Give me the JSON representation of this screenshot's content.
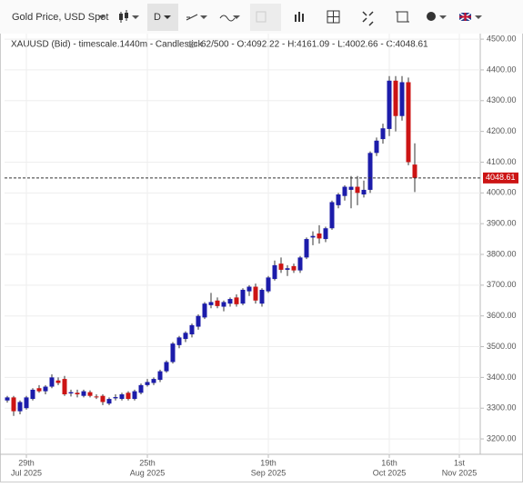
{
  "toolbar": {
    "symbol": "Gold Price, USD Spot",
    "interval": "D"
  },
  "chart_data": {
    "type": "candlestick",
    "title": "XAUUSD (Bid) - timescale.1440m - Candlestick",
    "subtitle": "62/500 - O:4092.22 - H:4161.09 - L:4002.66 - C:4048.61",
    "x": [
      "2025-07-24",
      "2025-07-25",
      "2025-07-28",
      "2025-07-29",
      "2025-07-30",
      "2025-07-31",
      "2025-08-01",
      "2025-08-04",
      "2025-08-05",
      "2025-08-06",
      "2025-08-07",
      "2025-08-08",
      "2025-08-11",
      "2025-08-12",
      "2025-08-13",
      "2025-08-14",
      "2025-08-15",
      "2025-08-18",
      "2025-08-19",
      "2025-08-20",
      "2025-08-21",
      "2025-08-22",
      "2025-08-25",
      "2025-08-26",
      "2025-08-27",
      "2025-08-28",
      "2025-08-29",
      "2025-09-01",
      "2025-09-02",
      "2025-09-03",
      "2025-09-04",
      "2025-09-05",
      "2025-09-08",
      "2025-09-09",
      "2025-09-10",
      "2025-09-11",
      "2025-09-12",
      "2025-09-15",
      "2025-09-16",
      "2025-09-17",
      "2025-09-18",
      "2025-09-19",
      "2025-09-22",
      "2025-09-23",
      "2025-09-24",
      "2025-09-25",
      "2025-09-26",
      "2025-09-29",
      "2025-09-30",
      "2025-10-01",
      "2025-10-02",
      "2025-10-03",
      "2025-10-06",
      "2025-10-07",
      "2025-10-08",
      "2025-10-09",
      "2025-10-10",
      "2025-10-13",
      "2025-10-14",
      "2025-10-15",
      "2025-10-16",
      "2025-10-17",
      "2025-10-20",
      "2025-10-21",
      "2025-10-22"
    ],
    "open": [
      3325,
      3335,
      3290,
      3300,
      3330,
      3365,
      3355,
      3370,
      3390,
      3395,
      3348,
      3350,
      3340,
      3352,
      3338,
      3340,
      3315,
      3332,
      3330,
      3350,
      3330,
      3350,
      3375,
      3382,
      3392,
      3420,
      3450,
      3505,
      3525,
      3540,
      3565,
      3595,
      3635,
      3650,
      3630,
      3640,
      3660,
      3640,
      3680,
      3695,
      3640,
      3680,
      3720,
      3770,
      3750,
      3762,
      3748,
      3790,
      3855,
      3868,
      3850,
      3885,
      3960,
      3990,
      4010,
      4020,
      3995,
      4010,
      4130,
      4175,
      4208,
      4365,
      4250,
      4360,
      4092.22
    ],
    "high": [
      3340,
      3340,
      3325,
      3340,
      3365,
      3375,
      3375,
      3410,
      3400,
      3405,
      3360,
      3360,
      3360,
      3358,
      3345,
      3345,
      3335,
      3345,
      3350,
      3355,
      3360,
      3380,
      3395,
      3400,
      3425,
      3455,
      3515,
      3535,
      3550,
      3575,
      3605,
      3645,
      3675,
      3660,
      3650,
      3660,
      3670,
      3690,
      3700,
      3705,
      3690,
      3730,
      3780,
      3790,
      3765,
      3770,
      3795,
      3855,
      3875,
      3895,
      3890,
      3975,
      4000,
      4025,
      4055,
      4055,
      4040,
      4135,
      4180,
      4225,
      4380,
      4380,
      4380,
      4375,
      4161.09
    ],
    "low": [
      3318,
      3275,
      3280,
      3295,
      3325,
      3350,
      3345,
      3365,
      3375,
      3340,
      3338,
      3335,
      3335,
      3335,
      3330,
      3310,
      3310,
      3325,
      3325,
      3325,
      3325,
      3345,
      3370,
      3375,
      3385,
      3415,
      3445,
      3495,
      3515,
      3530,
      3555,
      3590,
      3625,
      3625,
      3615,
      3630,
      3630,
      3635,
      3665,
      3640,
      3630,
      3675,
      3715,
      3740,
      3730,
      3740,
      3740,
      3785,
      3830,
      3835,
      3840,
      3880,
      3950,
      3975,
      3950,
      3960,
      3985,
      4000,
      4120,
      4160,
      4185,
      4200,
      4235,
      4090,
      4002.66
    ],
    "close": [
      3335,
      3290,
      3320,
      3335,
      3360,
      3355,
      3370,
      3400,
      3382,
      3345,
      3352,
      3345,
      3355,
      3340,
      3336,
      3320,
      3330,
      3336,
      3345,
      3330,
      3355,
      3375,
      3385,
      3395,
      3420,
      3450,
      3510,
      3530,
      3545,
      3570,
      3600,
      3640,
      3645,
      3632,
      3645,
      3655,
      3638,
      3685,
      3695,
      3650,
      3685,
      3725,
      3765,
      3750,
      3755,
      3748,
      3790,
      3850,
      3860,
      3852,
      3885,
      3970,
      3995,
      4020,
      4020,
      4000,
      4010,
      4130,
      4170,
      4210,
      4365,
      4250,
      4360,
      4100,
      4048.61
    ],
    "up_color": "#1c1caa",
    "down_color": "#cc1414",
    "last_price": 4048.61,
    "ylim": [
      3150,
      4518
    ],
    "yticks": [
      {
        "value": 3200,
        "label": "3200.00"
      },
      {
        "value": 3300,
        "label": "3300.00"
      },
      {
        "value": 3400,
        "label": "3400.00"
      },
      {
        "value": 3500,
        "label": "3500.00"
      },
      {
        "value": 3600,
        "label": "3600.00"
      },
      {
        "value": 3700,
        "label": "3700.00"
      },
      {
        "value": 3800,
        "label": "3800.00"
      },
      {
        "value": 3900,
        "label": "3900.00"
      },
      {
        "value": 4000,
        "label": "4000.00"
      },
      {
        "value": 4100,
        "label": "4100.00"
      },
      {
        "value": 4200,
        "label": "4200.00"
      },
      {
        "value": 4300,
        "label": "4300.00"
      },
      {
        "value": 4400,
        "label": "4400.00"
      },
      {
        "value": 4500,
        "label": "4500.00"
      }
    ],
    "xticks": [
      {
        "value": "2025-07-29",
        "label": [
          "29th",
          "Jul 2025"
        ]
      },
      {
        "value": "2025-08-25",
        "label": [
          "25th",
          "Aug 2025"
        ]
      },
      {
        "value": "2025-09-19",
        "label": [
          "19th",
          "Sep 2025"
        ]
      },
      {
        "value": "2025-10-16",
        "label": [
          "16th",
          "Oct 2025"
        ]
      },
      {
        "value": "2025-11-01",
        "label": [
          "1st",
          "Nov 2025"
        ]
      }
    ],
    "grid": true
  }
}
